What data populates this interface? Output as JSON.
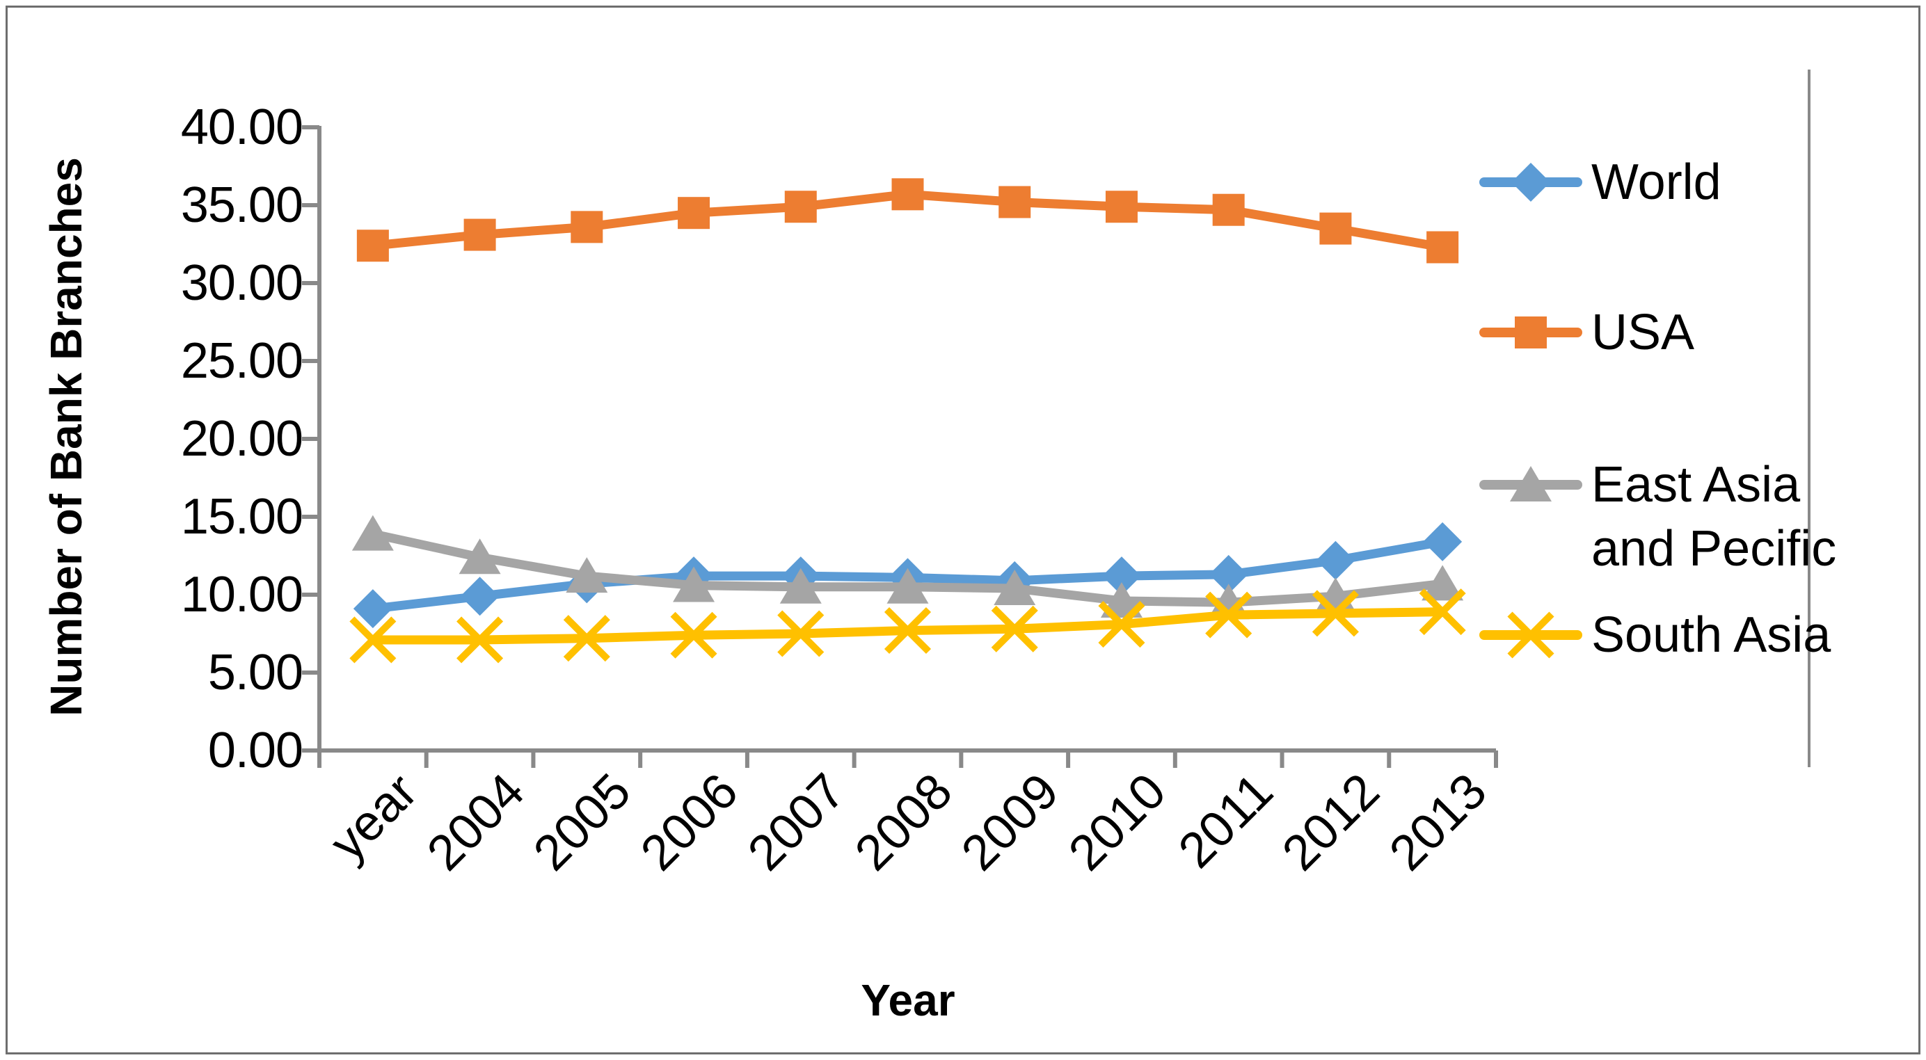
{
  "chart_data": {
    "type": "line",
    "title": "",
    "xlabel": "Year",
    "ylabel": "Number of Bank Branches",
    "categories": [
      "year",
      "2004",
      "2005",
      "2006",
      "2007",
      "2008",
      "2009",
      "2010",
      "2011",
      "2012",
      "2013"
    ],
    "series": [
      {
        "name": "World",
        "legend_lines": [
          "World"
        ],
        "marker": "diamond",
        "color": "#5B9BD5",
        "values": [
          9.1,
          9.9,
          10.7,
          11.2,
          11.2,
          11.1,
          10.9,
          11.2,
          11.3,
          12.2,
          13.4
        ]
      },
      {
        "name": "USA",
        "legend_lines": [
          "USA"
        ],
        "marker": "square",
        "color": "#ED7D31",
        "values": [
          32.4,
          33.1,
          33.6,
          34.5,
          34.9,
          35.7,
          35.2,
          34.9,
          34.7,
          33.5,
          32.3
        ]
      },
      {
        "name": "East Asia and Pecific",
        "legend_lines": [
          "East Asia",
          "and Pecific"
        ],
        "marker": "triangle",
        "color": "#A5A5A5",
        "values": [
          13.9,
          12.4,
          11.2,
          10.6,
          10.5,
          10.5,
          10.4,
          9.6,
          9.5,
          9.9,
          10.7
        ]
      },
      {
        "name": "South Asia",
        "legend_lines": [
          "South Asia"
        ],
        "marker": "x-cross",
        "color": "#FFC000",
        "values": [
          7.1,
          7.1,
          7.2,
          7.4,
          7.5,
          7.7,
          7.8,
          8.1,
          8.7,
          8.8,
          8.9
        ]
      }
    ],
    "ylim": [
      0,
      40
    ],
    "ytick_step": 5,
    "ytick_labels": [
      "0.00",
      "5.00",
      "10.00",
      "15.00",
      "20.00",
      "25.00",
      "30.00",
      "35.00",
      "40.00"
    ],
    "grid": false,
    "legend_position": "right",
    "axis_color": "#898989",
    "text_color": "#000000",
    "background": "#FFFFFF"
  }
}
